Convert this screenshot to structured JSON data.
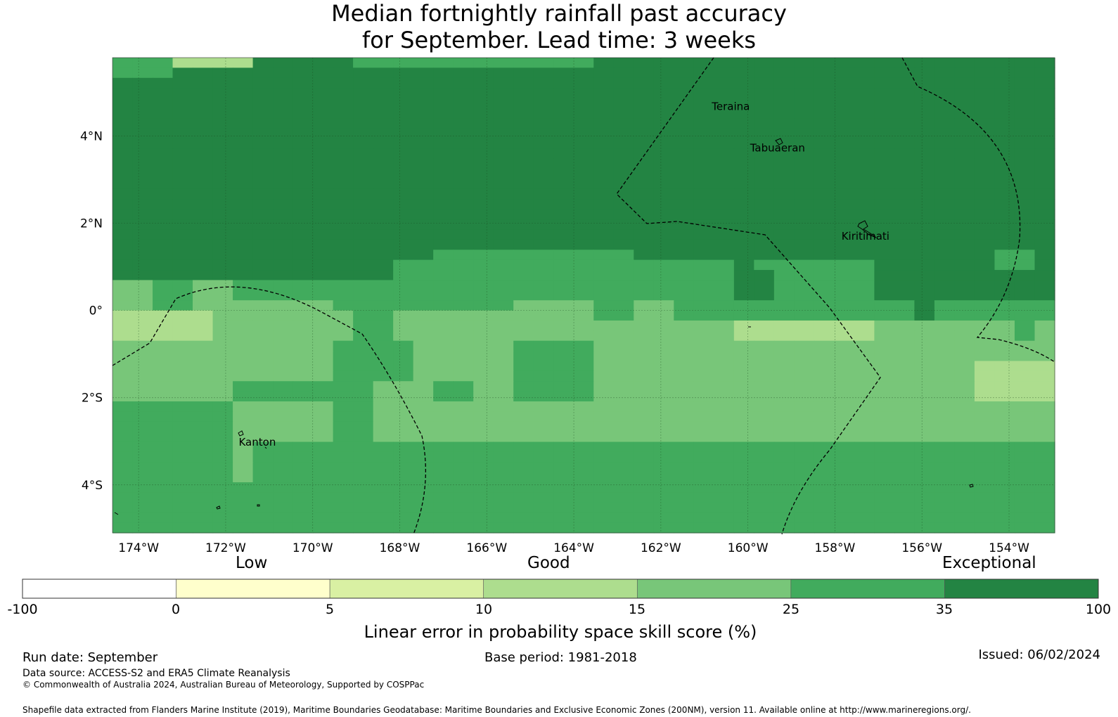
{
  "title": {
    "line1": "Median fortnightly rainfall past accuracy",
    "line2": "for September. Lead time: 3 weeks"
  },
  "map": {
    "lat_range": [
      -5.1,
      5.8
    ],
    "lon_range": [
      -174.6,
      -152.95
    ],
    "lat_ticks": [
      {
        "value": 4,
        "label": "4°N"
      },
      {
        "value": 2,
        "label": "2°N"
      },
      {
        "value": 0,
        "label": "0°"
      },
      {
        "value": -2,
        "label": "2°S"
      },
      {
        "value": -4,
        "label": "4°S"
      }
    ],
    "lon_ticks": [
      {
        "value": -174,
        "label": "174°W"
      },
      {
        "value": -172,
        "label": "172°W"
      },
      {
        "value": -170,
        "label": "170°W"
      },
      {
        "value": -168,
        "label": "168°W"
      },
      {
        "value": -166,
        "label": "166°W"
      },
      {
        "value": -164,
        "label": "164°W"
      },
      {
        "value": -162,
        "label": "162°W"
      },
      {
        "value": -160,
        "label": "160°W"
      },
      {
        "value": -158,
        "label": "158°W"
      },
      {
        "value": -156,
        "label": "156°W"
      },
      {
        "value": -154,
        "label": "154°W"
      }
    ],
    "places": [
      {
        "name": "Teraina",
        "lon": -160.83,
        "lat": 4.6
      },
      {
        "name": "Tabuaeran",
        "lon": -159.95,
        "lat": 3.65
      },
      {
        "name": "Kiritimati",
        "lon": -157.85,
        "lat": 1.62
      },
      {
        "name": "Kanton",
        "lon": -171.7,
        "lat": -3.1
      }
    ],
    "color_levels": [
      "#ffffff",
      "#ffffcc",
      "#d9f0a3",
      "#addd8e",
      "#78c679",
      "#41ab5d",
      "#238443"
    ],
    "skill_rows": [
      "55533336666655555555555566666666666666666666666",
      "55566666666666666666666666666666666666666666666",
      "66666666666666666666666666666666666666666666666",
      "66666666666666666666666666666666666666666666666",
      "66666666666666666666666666666666666666666666666",
      "66666666666666666666666666666666666666666666666",
      "66666666666666666666666666666666666666666666666",
      "66666666666666666666666666666666666666666666666",
      "66666666666666666666666666666666666666666666666",
      "66666666666666666666666666666666666666666666666",
      "66666666666666666666666666666666666666666666666",
      "66666666666666666666666666666666666666666666666",
      "66666666666666666666666666666666666666666666666",
      "66666666666666666666666666666666666666666666666",
      "66666666666666666666666666666666666666666666666",
      "66666666666666666666666666666666666666666666666",
      "66666666666666666666666666666666666666666666666",
      "66666666666666666666666666666666666666666666666",
      "66666666666666666666666666666666666666666666666",
      "66666666666666665555555555666666666666666666556",
      "66666666666666555555555555555556555555666666556",
      "66666666666666555555555555555556655555666666666",
      "44554455555555555555555555555556655555666666666",
      "44554455555555555555555555555556655555666666666",
      "44554444444555555555444455445555555555556555555",
      "33333444444455444444444455445555555555556555555",
      "33333444444455444444444444444443333333444444454",
      "33333444444455444444444444444443333333444444454",
      "44444444444555544444555544444444444444444444444",
      "44444444444555544444555544444444444444444444444",
      "44444444444555544444555544444444444444444443333",
      "44444444444555544444555544444444444444444443333",
      "44444455555554445544555544444444444444444443333",
      "44444455555554445544555544444444444444444443333",
      "55555544444554444444444444444444444444444444444",
      "55555544444554444444444444444444444444444444444",
      "55555544444554444444444444444444444444444444444",
      "55555544444554444444444444444444444444444444444",
      "55555545555555555555555555555555555555555555555",
      "55555545555555555555555555555555555555555555555",
      "55555545555555555555555555555555555555555555555",
      "55555545555555555555555555555555555555555555555",
      "55555555555555555555555555555555555555555555555",
      "55555555555555555555555555555555555555555555555",
      "55555555555555555555555555555555555555555555555",
      "55555555555555555555555555555555555555555555555",
      "55555555555555555555555555555555555555555555555"
    ]
  },
  "colorbar": {
    "categories": [
      "Low",
      "Good",
      "Exceptional"
    ],
    "tick_labels": [
      "-100",
      "0",
      "5",
      "10",
      "15",
      "25",
      "35",
      "100"
    ],
    "colors": [
      "#ffffff",
      "#ffffcc",
      "#d9f0a3",
      "#addd8e",
      "#78c679",
      "#41ab5d",
      "#238443"
    ],
    "title": "Linear error in probability space skill score (%)"
  },
  "footer": {
    "run_date": "Run date: September",
    "base_period": "Base period: 1981-2018",
    "issued": "Issued: 06/02/2024",
    "data_source": "Data source: ACCESS-S2 and ERA5 Climate Reanalysis",
    "copyright": "© Commonwealth of Australia 2024, Australian Bureau of Meteorology, Supported by COSPPac",
    "shapefile": "Shapefile data extracted from Flanders Marine Institute (2019), Maritime Boundaries Geodatabase: Maritime Boundaries and Exclusive Economic Zones (200NM), version 11. Available online at http://www.marineregions.org/."
  }
}
